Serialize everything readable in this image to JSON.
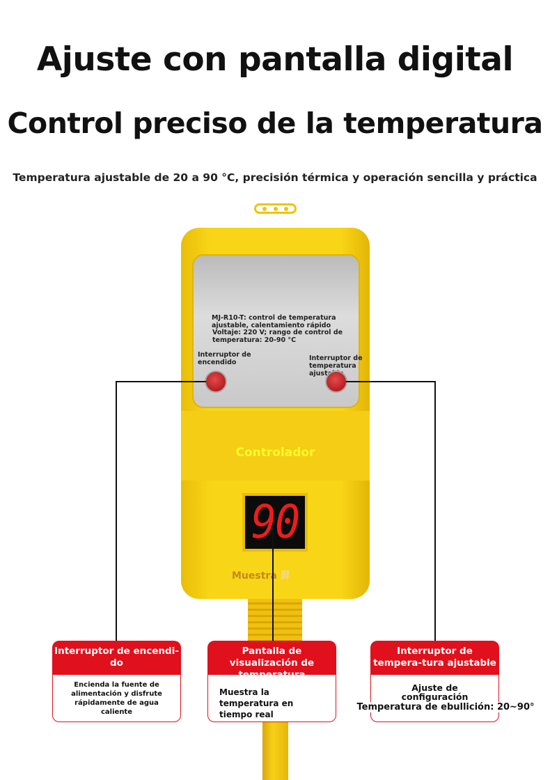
{
  "headline": "Ajuste con pantalla digital",
  "subheadline": "Control preciso de la temperatura",
  "tagline": "Temperatura ajustable de 20 a 90 °C, precisión térmica y operación sencilla y práctica",
  "device": {
    "panel_line1": "MJ-R10-T: control de temperatura ajustable, calentamiento rápido",
    "panel_line2": "Voltaje: 220 V; rango de control de temperatura: 20-90 °C",
    "power_label": "Interruptor de encendido",
    "temp_label": "Interruptor de temperatura ajustable",
    "brand_label": "Controlador",
    "display_value": "90",
    "display_caption": "Muestra",
    "display_caption_cn": "屏"
  },
  "colors": {
    "body": "#f8d516",
    "accent": "#e0101c",
    "display": "#ee1c1c"
  },
  "callouts": [
    {
      "title": "Interruptor de encendi-do",
      "body": "Encienda la fuente de alimentación y disfrute rápidamente de agua caliente"
    },
    {
      "title": "Pantalla de visualización de temperatura",
      "body": "Muestra la temperatura en tiempo real"
    },
    {
      "title": "Interruptor de tempera-tura ajustable",
      "body": "Ajuste de configuración",
      "extra": "Temperatura de ebullición: 20~90°"
    }
  ]
}
